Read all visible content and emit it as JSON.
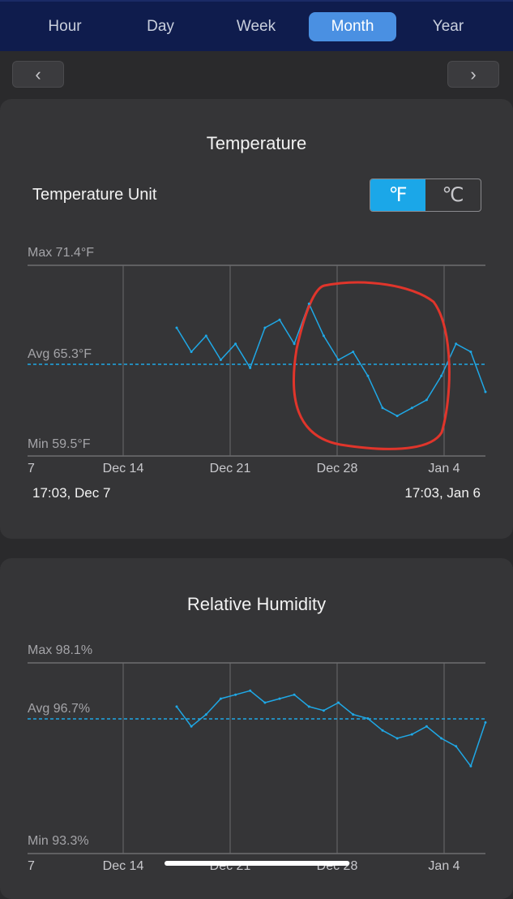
{
  "tabs": [
    {
      "label": "Hour",
      "active": false
    },
    {
      "label": "Day",
      "active": false
    },
    {
      "label": "Week",
      "active": false
    },
    {
      "label": "Month",
      "active": true
    },
    {
      "label": "Year",
      "active": false
    }
  ],
  "nav": {
    "prev_icon": "chevron-left-icon",
    "next_icon": "chevron-right-icon",
    "prev_glyph": "‹",
    "next_glyph": "›"
  },
  "temperature": {
    "title": "Temperature",
    "unit_label": "Temperature Unit",
    "unit_options": [
      "℉",
      "℃"
    ],
    "selected_unit": "℉",
    "max_label": "Max 71.4°F",
    "avg_label": "Avg 65.3°F",
    "min_label": "Min 59.5°F",
    "range_start": "17:03,  Dec 7",
    "range_end": "17:03,  Jan 6"
  },
  "humidity": {
    "title": "Relative Humidity",
    "max_label": "Max 98.1%",
    "avg_label": "Avg 96.7%",
    "min_label": "Min 93.3%"
  },
  "colors": {
    "accent": "#1ba7e8",
    "line": "#1fa8e6",
    "annotation": "#e0352b",
    "tab_active": "#4a90e2"
  },
  "chart_data": [
    {
      "type": "line",
      "title": "Temperature",
      "x_ticks": [
        "7",
        "Dec 14",
        "Dec 21",
        "Dec 28",
        "Jan 4"
      ],
      "ylim": [
        59.5,
        71.4
      ],
      "avg": 65.3,
      "x": [
        "Dec 16",
        "Dec 17",
        "Dec 18",
        "Dec 19",
        "Dec 20",
        "Dec 21",
        "Dec 22",
        "Dec 23",
        "Dec 24",
        "Dec 25",
        "Dec 26",
        "Dec 27",
        "Dec 28",
        "Dec 29",
        "Dec 30",
        "Dec 31",
        "Jan 1",
        "Jan 2",
        "Jan 3",
        "Jan 4",
        "Jan 5",
        "Jan 6"
      ],
      "values": [
        67.5,
        66.0,
        67.0,
        65.5,
        66.5,
        65.0,
        67.5,
        68.0,
        66.5,
        69.0,
        67.0,
        65.5,
        66.0,
        64.5,
        62.5,
        62.0,
        62.5,
        63.0,
        64.5,
        66.5,
        66.0,
        63.5
      ]
    },
    {
      "type": "line",
      "title": "Relative Humidity",
      "x_ticks": [
        "7",
        "Dec 14",
        "Dec 21",
        "Dec 28",
        "Jan 4"
      ],
      "ylim": [
        93.3,
        98.1
      ],
      "avg": 96.7,
      "x": [
        "Dec 16",
        "Dec 17",
        "Dec 18",
        "Dec 19",
        "Dec 20",
        "Dec 21",
        "Dec 22",
        "Dec 23",
        "Dec 24",
        "Dec 25",
        "Dec 26",
        "Dec 27",
        "Dec 28",
        "Dec 29",
        "Dec 30",
        "Dec 31",
        "Jan 1",
        "Jan 2",
        "Jan 3",
        "Jan 4",
        "Jan 5",
        "Jan 6"
      ],
      "values": [
        97.0,
        96.5,
        96.8,
        97.2,
        97.3,
        97.4,
        97.1,
        97.2,
        97.3,
        97.0,
        96.9,
        97.1,
        96.8,
        96.7,
        96.4,
        96.2,
        96.3,
        96.5,
        96.2,
        96.0,
        95.5,
        96.6
      ]
    }
  ]
}
